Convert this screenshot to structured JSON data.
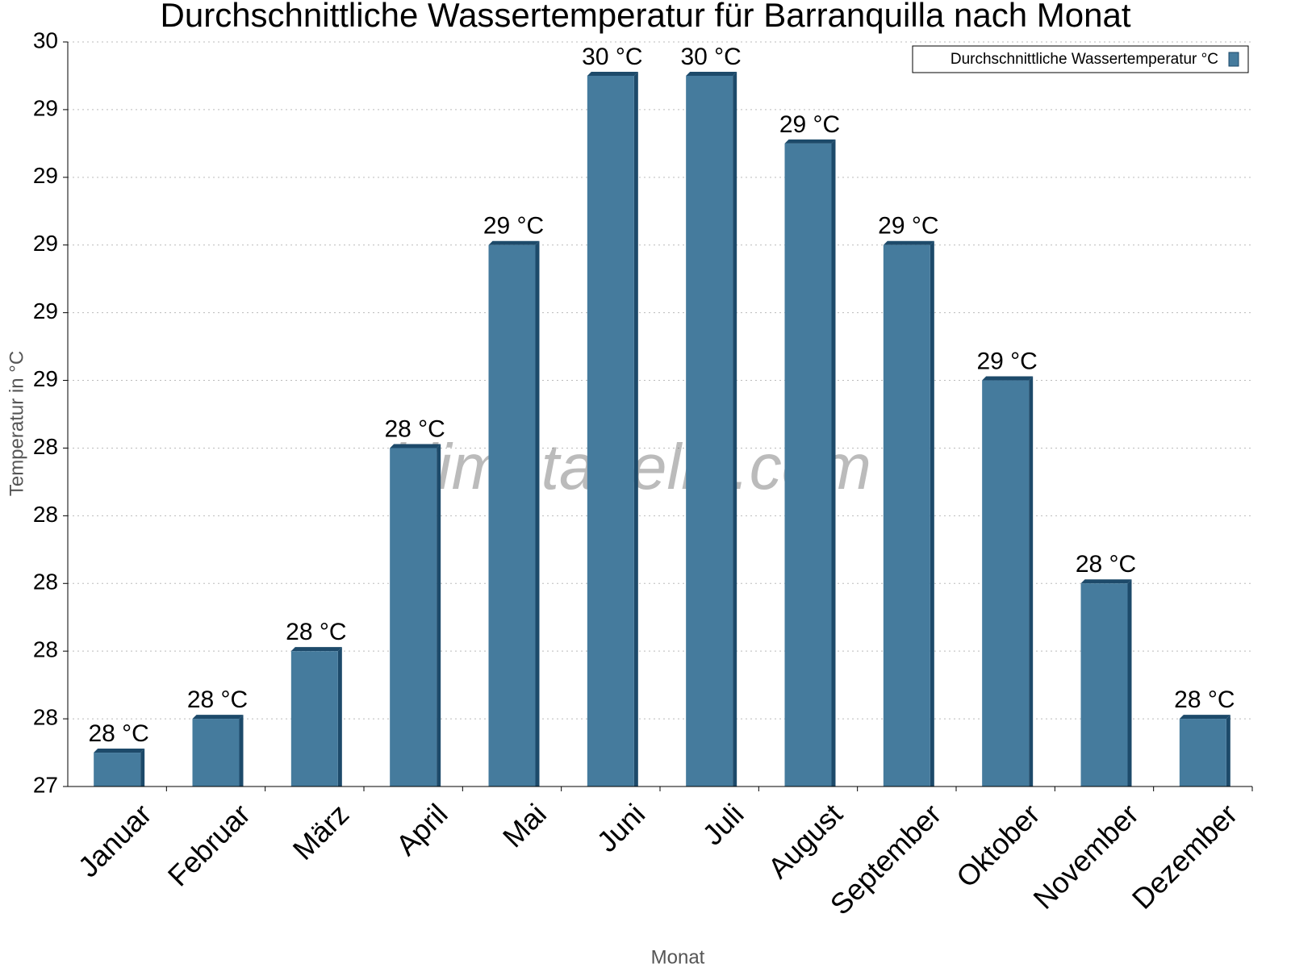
{
  "chart_data": {
    "type": "bar",
    "title": "Durchschnittliche Wassertemperatur für Barranquilla nach Monat",
    "x_label": "Monat",
    "y_label": "Temperatur in °C",
    "watermark": "klimatabelle.com",
    "categories": [
      "Januar",
      "Februar",
      "März",
      "April",
      "Mai",
      "Juni",
      "Juli",
      "August",
      "September",
      "Oktober",
      "November",
      "Dezember"
    ],
    "series": [
      {
        "name": "Durchschnittliche Wassertemperatur °C",
        "color": "#457b9d",
        "values": [
          27.5,
          27.6,
          27.8,
          28.4,
          29.0,
          29.5,
          29.5,
          29.3,
          29.0,
          28.6,
          28.0,
          27.6
        ],
        "value_labels": [
          "28 °C",
          "28 °C",
          "28 °C",
          "28 °C",
          "29 °C",
          "30 °C",
          "30 °C",
          "29 °C",
          "29 °C",
          "29 °C",
          "28 °C",
          "28 °C"
        ]
      }
    ],
    "ylim": [
      27.4,
      29.6
    ],
    "yticks": [
      {
        "value": 27.4,
        "label": "27"
      },
      {
        "value": 27.6,
        "label": "28"
      },
      {
        "value": 27.8,
        "label": "28"
      },
      {
        "value": 28.0,
        "label": "28"
      },
      {
        "value": 28.2,
        "label": "28"
      },
      {
        "value": 28.4,
        "label": "28"
      },
      {
        "value": 28.6,
        "label": "29"
      },
      {
        "value": 28.8,
        "label": "29"
      },
      {
        "value": 29.0,
        "label": "29"
      },
      {
        "value": 29.2,
        "label": "29"
      },
      {
        "value": 29.4,
        "label": "29"
      },
      {
        "value": 29.6,
        "label": "30"
      }
    ],
    "grid": true,
    "legend": "top-right"
  }
}
